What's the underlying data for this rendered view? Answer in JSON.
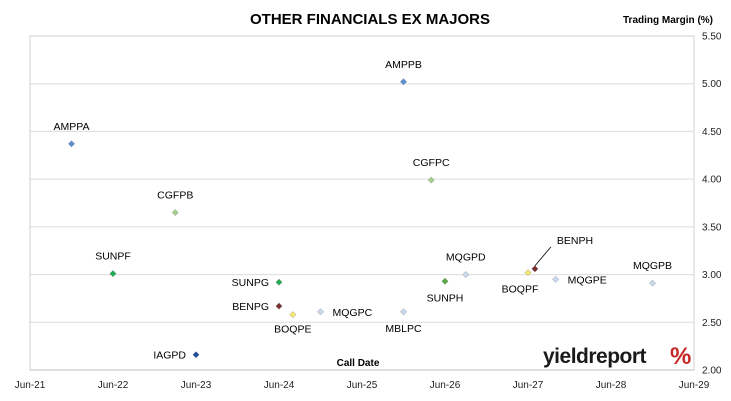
{
  "chart_data": {
    "type": "scatter",
    "title": "OTHER FINANCIALS EX MAJORS",
    "ylabel": "Trading Margin (%)",
    "xlabel": "Call Date",
    "ylim": [
      2.0,
      5.5
    ],
    "yticks": [
      "2.00",
      "2.50",
      "3.00",
      "3.50",
      "4.00",
      "4.50",
      "5.00",
      "5.50"
    ],
    "xlim": [
      "2021-06",
      "2029-06"
    ],
    "xticks": [
      "Jun-21",
      "Jun-22",
      "Jun-23",
      "Jun-24",
      "Jun-25",
      "Jun-26",
      "Jun-27",
      "Jun-28",
      "Jun-29"
    ],
    "grid": "horizontal",
    "y_axis_position": "right",
    "points": [
      {
        "label": "AMPPA",
        "x": "2021-12",
        "y": 4.37,
        "color": "#5b8fd4"
      },
      {
        "label": "SUNPF",
        "x": "2022-06",
        "y": 3.01,
        "color": "#22aa55"
      },
      {
        "label": "CGFPB",
        "x": "2023-03",
        "y": 3.65,
        "color": "#a8d08d"
      },
      {
        "label": "IAGPD",
        "x": "2023-06",
        "y": 2.16,
        "color": "#1f4e9c"
      },
      {
        "label": "SUNPG",
        "x": "2024-06",
        "y": 2.92,
        "color": "#22aa55"
      },
      {
        "label": "BENPG",
        "x": "2024-06",
        "y": 2.67,
        "color": "#7b2c2c"
      },
      {
        "label": "BOQPE",
        "x": "2024-08",
        "y": 2.58,
        "color": "#f2e86b"
      },
      {
        "label": "MQGPC",
        "x": "2024-12",
        "y": 2.61,
        "color": "#c9d9f0"
      },
      {
        "label": "AMPPB",
        "x": "2025-12",
        "y": 5.02,
        "color": "#5b8fd4"
      },
      {
        "label": "MBLPC",
        "x": "2025-12",
        "y": 2.61,
        "color": "#c9d9f0"
      },
      {
        "label": "CGFPC",
        "x": "2026-04",
        "y": 3.99,
        "color": "#a8d08d"
      },
      {
        "label": "SUNPH",
        "x": "2026-06",
        "y": 2.93,
        "color": "#5aa844"
      },
      {
        "label": "MQGPD",
        "x": "2026-09",
        "y": 3.0,
        "color": "#c9d9f0"
      },
      {
        "label": "BOQPF",
        "x": "2027-06",
        "y": 3.02,
        "color": "#f2e86b"
      },
      {
        "label": "BENPH",
        "x": "2027-07",
        "y": 3.06,
        "color": "#7b2c2c"
      },
      {
        "label": "MQGPE",
        "x": "2027-10",
        "y": 2.95,
        "color": "#c9d9f0"
      },
      {
        "label": "MQGPB",
        "x": "2028-12",
        "y": 2.91,
        "color": "#c9d9f0"
      }
    ]
  },
  "logo": {
    "word": "yieldreport",
    "pct": "%"
  }
}
